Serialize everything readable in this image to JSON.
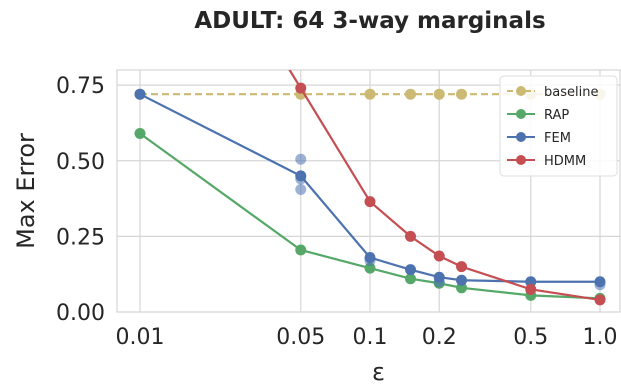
{
  "chart_data": {
    "type": "line",
    "title": "ADULT: 64 3-way marginals",
    "xlabel": "ε",
    "ylabel": "Max Error",
    "xscale": "log",
    "xlim": [
      0.01,
      1.0
    ],
    "ylim": [
      0.0,
      0.8
    ],
    "xticks": [
      0.01,
      0.05,
      0.1,
      0.2,
      0.5,
      1.0
    ],
    "xtick_labels": [
      "0.01",
      "0.05",
      "0.1",
      "0.2",
      "0.5",
      "1.0"
    ],
    "yticks": [
      0.0,
      0.25,
      0.5,
      0.75
    ],
    "ytick_labels": [
      "0.00",
      "0.25",
      "0.50",
      "0.75"
    ],
    "grid": true,
    "legend_position": "top-right",
    "series": [
      {
        "name": "baseline",
        "color": "#ccb974",
        "style": "dashed",
        "x": [
          0.01,
          0.05,
          0.1,
          0.15,
          0.2,
          0.25,
          0.5,
          1.0
        ],
        "y": [
          0.72,
          0.72,
          0.72,
          0.72,
          0.72,
          0.72,
          0.72,
          0.72
        ]
      },
      {
        "name": "RAP",
        "color": "#55a868",
        "style": "solid",
        "x": [
          0.01,
          0.05,
          0.1,
          0.15,
          0.2,
          0.25,
          0.5,
          1.0
        ],
        "y": [
          0.59,
          0.205,
          0.145,
          0.11,
          0.095,
          0.08,
          0.055,
          0.045
        ]
      },
      {
        "name": "FEM",
        "color": "#4c72b0",
        "style": "solid",
        "x": [
          0.01,
          0.05,
          0.1,
          0.15,
          0.2,
          0.25,
          0.5,
          1.0
        ],
        "y": [
          0.72,
          0.45,
          0.18,
          0.14,
          0.115,
          0.105,
          0.1,
          0.1
        ],
        "extra_points": [
          {
            "x": 0.05,
            "y": 0.505
          },
          {
            "x": 0.05,
            "y": 0.405
          },
          {
            "x": 0.05,
            "y": 0.44
          },
          {
            "x": 0.1,
            "y": 0.17
          },
          {
            "x": 0.2,
            "y": 0.1
          },
          {
            "x": 1.0,
            "y": 0.09
          }
        ]
      },
      {
        "name": "HDMM",
        "color": "#c44e52",
        "style": "solid",
        "x": [
          0.04,
          0.05,
          0.1,
          0.15,
          0.2,
          0.25,
          0.5,
          1.0
        ],
        "y": [
          0.86,
          0.74,
          0.365,
          0.25,
          0.185,
          0.15,
          0.075,
          0.04
        ]
      }
    ]
  }
}
